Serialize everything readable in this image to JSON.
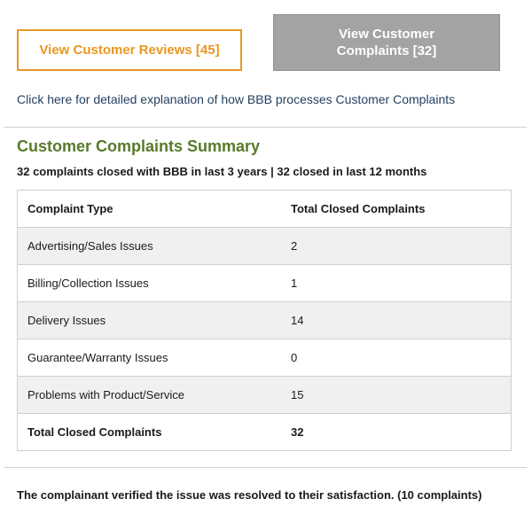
{
  "buttons": {
    "reviews_label": "View Customer Reviews [45]",
    "complaints_label": "View Customer Complaints [32]"
  },
  "explain_link": "Click here for detailed explanation of how BBB processes Customer Complaints",
  "summary": {
    "title": "Customer Complaints Summary",
    "subtitle": "32 complaints closed with BBB in last 3 years | 32 closed in last 12 months",
    "table": {
      "headers": [
        "Complaint Type",
        "Total Closed Complaints"
      ],
      "rows": [
        {
          "type": "Advertising/Sales Issues",
          "count": "2"
        },
        {
          "type": "Billing/Collection Issues",
          "count": "1"
        },
        {
          "type": "Delivery Issues",
          "count": "14"
        },
        {
          "type": "Guarantee/Warranty Issues",
          "count": "0"
        },
        {
          "type": "Problems with Product/Service",
          "count": "15"
        }
      ],
      "total": {
        "label": "Total Closed Complaints",
        "count": "32"
      }
    }
  },
  "resolution_note": "The complainant verified the issue was resolved to their satisfaction. (10 complaints)",
  "colors": {
    "accent_orange": "#e8971f",
    "active_tab_gray": "#a3a3a3",
    "title_green": "#577a2b",
    "link_blue": "#1f3f5f"
  }
}
